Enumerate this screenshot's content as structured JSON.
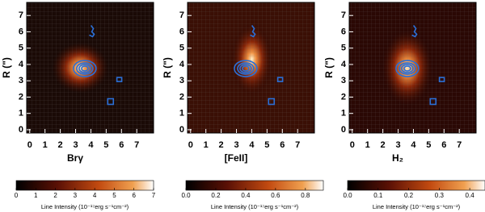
{
  "chart_data": [
    {
      "type": "heatmap",
      "xlabel": "Brγ",
      "ylabel": "R (\")",
      "xlim": [
        -0.2,
        8.1
      ],
      "ylim": [
        -0.2,
        7.8
      ],
      "xticks": [
        0,
        1,
        2,
        3,
        4,
        5,
        6,
        7
      ],
      "yticks": [
        0,
        1,
        2,
        3,
        4,
        5,
        6,
        7
      ],
      "colorbar_label": "Line Intensity (10⁻¹⁷erg s⁻¹cm⁻²)",
      "clim": [
        0,
        7
      ],
      "cticks": [
        0,
        1,
        2,
        3,
        4,
        5,
        6,
        7
      ]
    },
    {
      "type": "heatmap",
      "xlabel": "[FeII]",
      "ylabel": "R (\")",
      "xlim": [
        -0.2,
        8.1
      ],
      "ylim": [
        -0.2,
        7.8
      ],
      "xticks": [
        0,
        1,
        2,
        3,
        4,
        5,
        6,
        7
      ],
      "yticks": [
        0,
        1,
        2,
        3,
        4,
        5,
        6,
        7
      ],
      "colorbar_label": "Line Intensity (10⁻¹⁷erg s⁻¹cm⁻²)",
      "clim": [
        0,
        0.92
      ],
      "cticks": [
        {
          "value": 0,
          "label": "0.0"
        },
        {
          "value": 0.2,
          "label": "0.2"
        },
        {
          "value": 0.4,
          "label": "0.4"
        },
        {
          "value": 0.6,
          "label": "0.6"
        },
        {
          "value": 0.8,
          "label": "0.8"
        }
      ]
    },
    {
      "type": "heatmap",
      "xlabel": "H₂",
      "ylabel": "R (\")",
      "xlim": [
        -0.2,
        8.1
      ],
      "ylim": [
        -0.2,
        7.8
      ],
      "xticks": [
        0,
        1,
        2,
        3,
        4,
        5,
        6,
        7
      ],
      "yticks": [
        0,
        1,
        2,
        3,
        4,
        5,
        6,
        7
      ],
      "colorbar_label": "Line Intensity (10⁻¹⁷erg s⁻¹cm⁻²)",
      "clim": [
        0,
        0.45
      ],
      "cticks": [
        {
          "value": 0,
          "label": "0.0"
        },
        {
          "value": 0.1,
          "label": "0.1"
        },
        {
          "value": 0.2,
          "label": "0.2"
        },
        {
          "value": 0.3,
          "label": "0.3"
        },
        {
          "value": 0.4,
          "label": "0.4"
        }
      ]
    }
  ]
}
